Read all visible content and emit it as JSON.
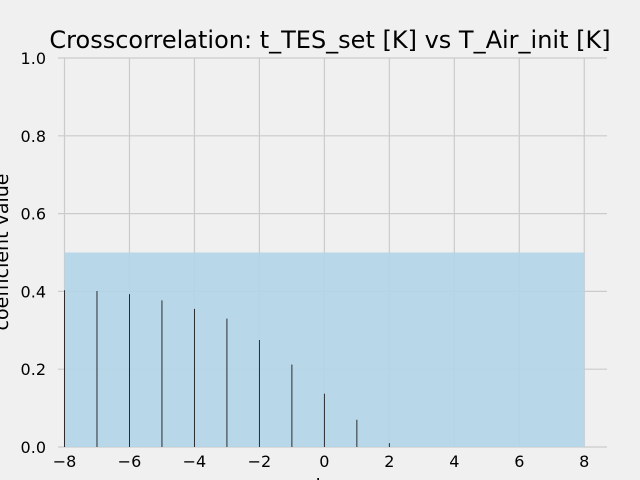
{
  "chart_data": {
    "type": "bar",
    "title": "Crosscorrelation: t_TES_set [K] vs T_Air_init [K]",
    "xlabel": "lag",
    "ylabel": "coefficient value",
    "xlim": [
      -8.2,
      8.7
    ],
    "ylim": [
      0.0,
      1.0
    ],
    "grid": true,
    "x_ticks": [
      -8,
      -6,
      -4,
      -2,
      0,
      2,
      4,
      6,
      8
    ],
    "x_tick_labels": [
      "−8",
      "−6",
      "−4",
      "−2",
      "0",
      "2",
      "4",
      "6",
      "8"
    ],
    "y_ticks": [
      0.0,
      0.2,
      0.4,
      0.6,
      0.8,
      1.0
    ],
    "y_tick_labels": [
      "0.0",
      "0.2",
      "0.4",
      "0.6",
      "0.8",
      "1.0"
    ],
    "confidence_band": {
      "x_range": [
        -8,
        8
      ],
      "y_range": [
        0.0,
        0.5
      ],
      "color": "#b3d5e8"
    },
    "bar_color": "#1a1a1a",
    "x": [
      -8,
      -7,
      -6,
      -5,
      -4,
      -3,
      -2,
      -1,
      0,
      1,
      2,
      3,
      4,
      5,
      6,
      7,
      8
    ],
    "values": [
      0.403,
      0.401,
      0.393,
      0.377,
      0.355,
      0.33,
      0.275,
      0.212,
      0.137,
      0.07,
      0.01,
      0,
      0,
      0,
      0,
      0,
      0
    ]
  }
}
